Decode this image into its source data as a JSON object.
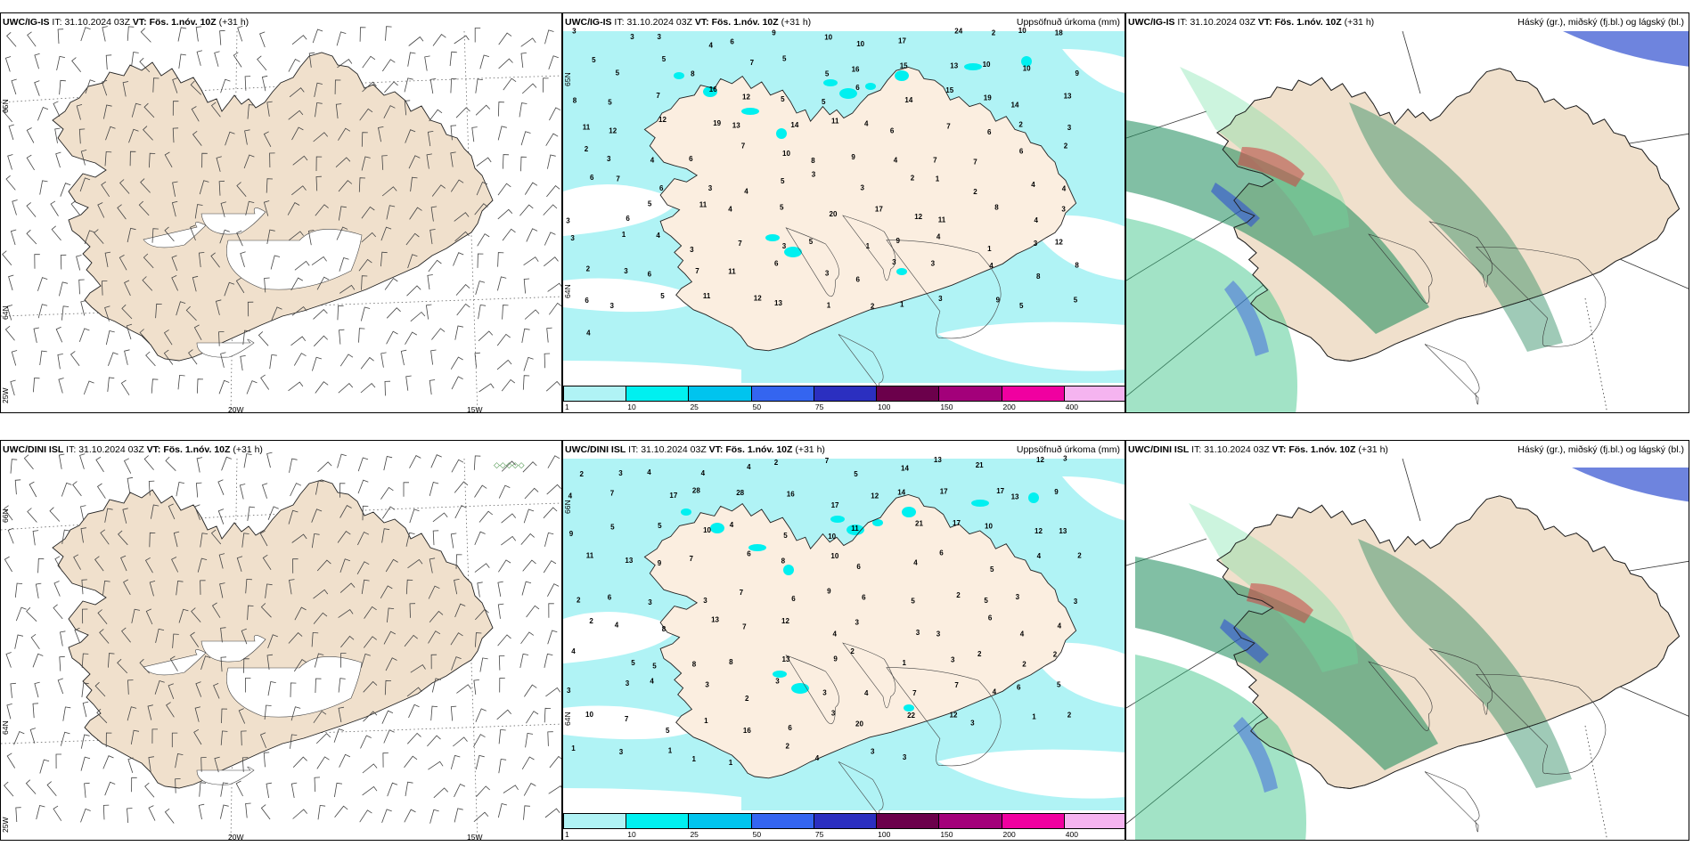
{
  "panels": [
    {
      "id": "wind_igis",
      "header": {
        "model": "UWC/IG-IS",
        "it_label": "IT:",
        "it": "31.10.2024 03Z",
        "vt_label": "VT:",
        "vt": "Fös. 1.nóv. 10Z",
        "lead": "(+31 h)",
        "right": ""
      },
      "lon_labels": [
        "20W",
        "15W"
      ],
      "lat_labels": [
        "65N",
        "64N",
        "25W"
      ]
    },
    {
      "id": "precip_igis",
      "header": {
        "model": "UWC/IG-IS",
        "it_label": "IT:",
        "it": "31.10.2024 03Z",
        "vt_label": "VT:",
        "vt": "Fös. 1.nóv. 10Z",
        "lead": "(+31 h)",
        "right": "Uppsöfnuð úrkoma (mm)"
      },
      "lat_labels": [
        "65N",
        "64N"
      ]
    },
    {
      "id": "cloud_igis",
      "header": {
        "model": "UWC/IG-IS",
        "it_label": "IT:",
        "it": "31.10.2024 03Z",
        "vt_label": "VT:",
        "vt": "Fös. 1.nóv. 10Z",
        "lead": "(+31 h)",
        "right": "Háský (gr.), miðský (fj.bl.) og lágský (bl.)"
      }
    },
    {
      "id": "wind_dini",
      "header": {
        "model": "UWC/DINI ISL",
        "it_label": "IT:",
        "it": "31.10.2024 03Z",
        "vt_label": "VT:",
        "vt": "Fös. 1.nóv. 10Z",
        "lead": "(+31 h)",
        "right": ""
      },
      "lon_labels": [
        "20W",
        "15W"
      ],
      "lat_labels": [
        "66N",
        "64N",
        "25W"
      ]
    },
    {
      "id": "precip_dini",
      "header": {
        "model": "UWC/DINI ISL",
        "it_label": "IT:",
        "it": "31.10.2024 03Z",
        "vt_label": "VT:",
        "vt": "Fös. 1.nóv. 10Z",
        "lead": "(+31 h)",
        "right": "Uppsöfnuð úrkoma (mm)"
      },
      "lat_labels": [
        "66N",
        "64N"
      ]
    },
    {
      "id": "cloud_dini",
      "header": {
        "model": "UWC/DINI ISL",
        "it_label": "IT:",
        "it": "31.10.2024 03Z",
        "vt_label": "VT:",
        "vt": "Fös. 1.nóv. 10Z",
        "lead": "(+31 h)",
        "right": "Háský (gr.), miðský (fj.bl.) og lágský (bl.)"
      }
    }
  ],
  "colorbar": {
    "ticks": [
      "1",
      "10",
      "25",
      "50",
      "75",
      "100",
      "150",
      "200",
      "400"
    ],
    "colors": [
      "#b0f3f5",
      "#00f0f0",
      "#00c4ee",
      "#3465f0",
      "#2b2fc0",
      "#6b004b",
      "#a3007a",
      "#f000a0",
      "#f5b4f0"
    ]
  },
  "precip_igis_numbers": [
    "3",
    "3",
    "3",
    "4",
    "6",
    "9",
    "10",
    "10",
    "17",
    "24",
    "2",
    "10",
    "18",
    "5",
    "5",
    "5",
    "8",
    "7",
    "5",
    "5",
    "16",
    "15",
    "13",
    "10",
    "10",
    "9",
    "8",
    "5",
    "7",
    "16",
    "12",
    "5",
    "5",
    "6",
    "14",
    "15",
    "19",
    "14",
    "13",
    "11",
    "12",
    "12",
    "19",
    "13",
    "14",
    "11",
    "4",
    "6",
    "7",
    "6",
    "2",
    "3",
    "2",
    "3",
    "4",
    "6",
    "7",
    "10",
    "8",
    "9",
    "4",
    "7",
    "7",
    "6",
    "2",
    "6",
    "7",
    "6",
    "3",
    "4",
    "5",
    "3",
    "3",
    "2",
    "1",
    "2",
    "4",
    "4",
    "3",
    "6",
    "5",
    "11",
    "4",
    "5",
    "20",
    "17",
    "12",
    "11",
    "8",
    "4",
    "3",
    "3",
    "1",
    "4",
    "3",
    "7",
    "3",
    "5",
    "1",
    "9",
    "4",
    "1",
    "3",
    "12",
    "2",
    "3",
    "6",
    "7",
    "11",
    "6",
    "3",
    "6",
    "3",
    "3",
    "4",
    "8",
    "8",
    "6",
    "3",
    "5",
    "11",
    "12",
    "13",
    "1",
    "2",
    "1",
    "3",
    "9",
    "5",
    "5",
    "4"
  ],
  "precip_dini_numbers": [
    "2",
    "3",
    "4",
    "4",
    "4",
    "2",
    "7",
    "5",
    "14",
    "13",
    "21",
    "12",
    "3",
    "4",
    "7",
    "17",
    "28",
    "28",
    "16",
    "17",
    "12",
    "14",
    "17",
    "17",
    "13",
    "9",
    "9",
    "5",
    "5",
    "10",
    "4",
    "5",
    "10",
    "11",
    "21",
    "17",
    "10",
    "12",
    "13",
    "11",
    "13",
    "9",
    "7",
    "6",
    "8",
    "10",
    "6",
    "4",
    "6",
    "5",
    "4",
    "2",
    "2",
    "6",
    "3",
    "3",
    "7",
    "6",
    "9",
    "6",
    "5",
    "2",
    "5",
    "3",
    "3",
    "2",
    "4",
    "8",
    "13",
    "7",
    "12",
    "4",
    "3",
    "3",
    "3",
    "6",
    "4",
    "4",
    "4",
    "5",
    "5",
    "8",
    "8",
    "13",
    "9",
    "2",
    "1",
    "3",
    "2",
    "2",
    "2",
    "3",
    "3",
    "4",
    "3",
    "2",
    "3",
    "3",
    "4",
    "7",
    "7",
    "4",
    "6",
    "5",
    "10",
    "7",
    "5",
    "1",
    "16",
    "6",
    "3",
    "20",
    "22",
    "12",
    "3",
    "1",
    "2",
    "1",
    "3",
    "1",
    "1",
    "1",
    "2",
    "4",
    "3",
    "3"
  ],
  "wind_dini_stations": "◇◇◇◇◇"
}
